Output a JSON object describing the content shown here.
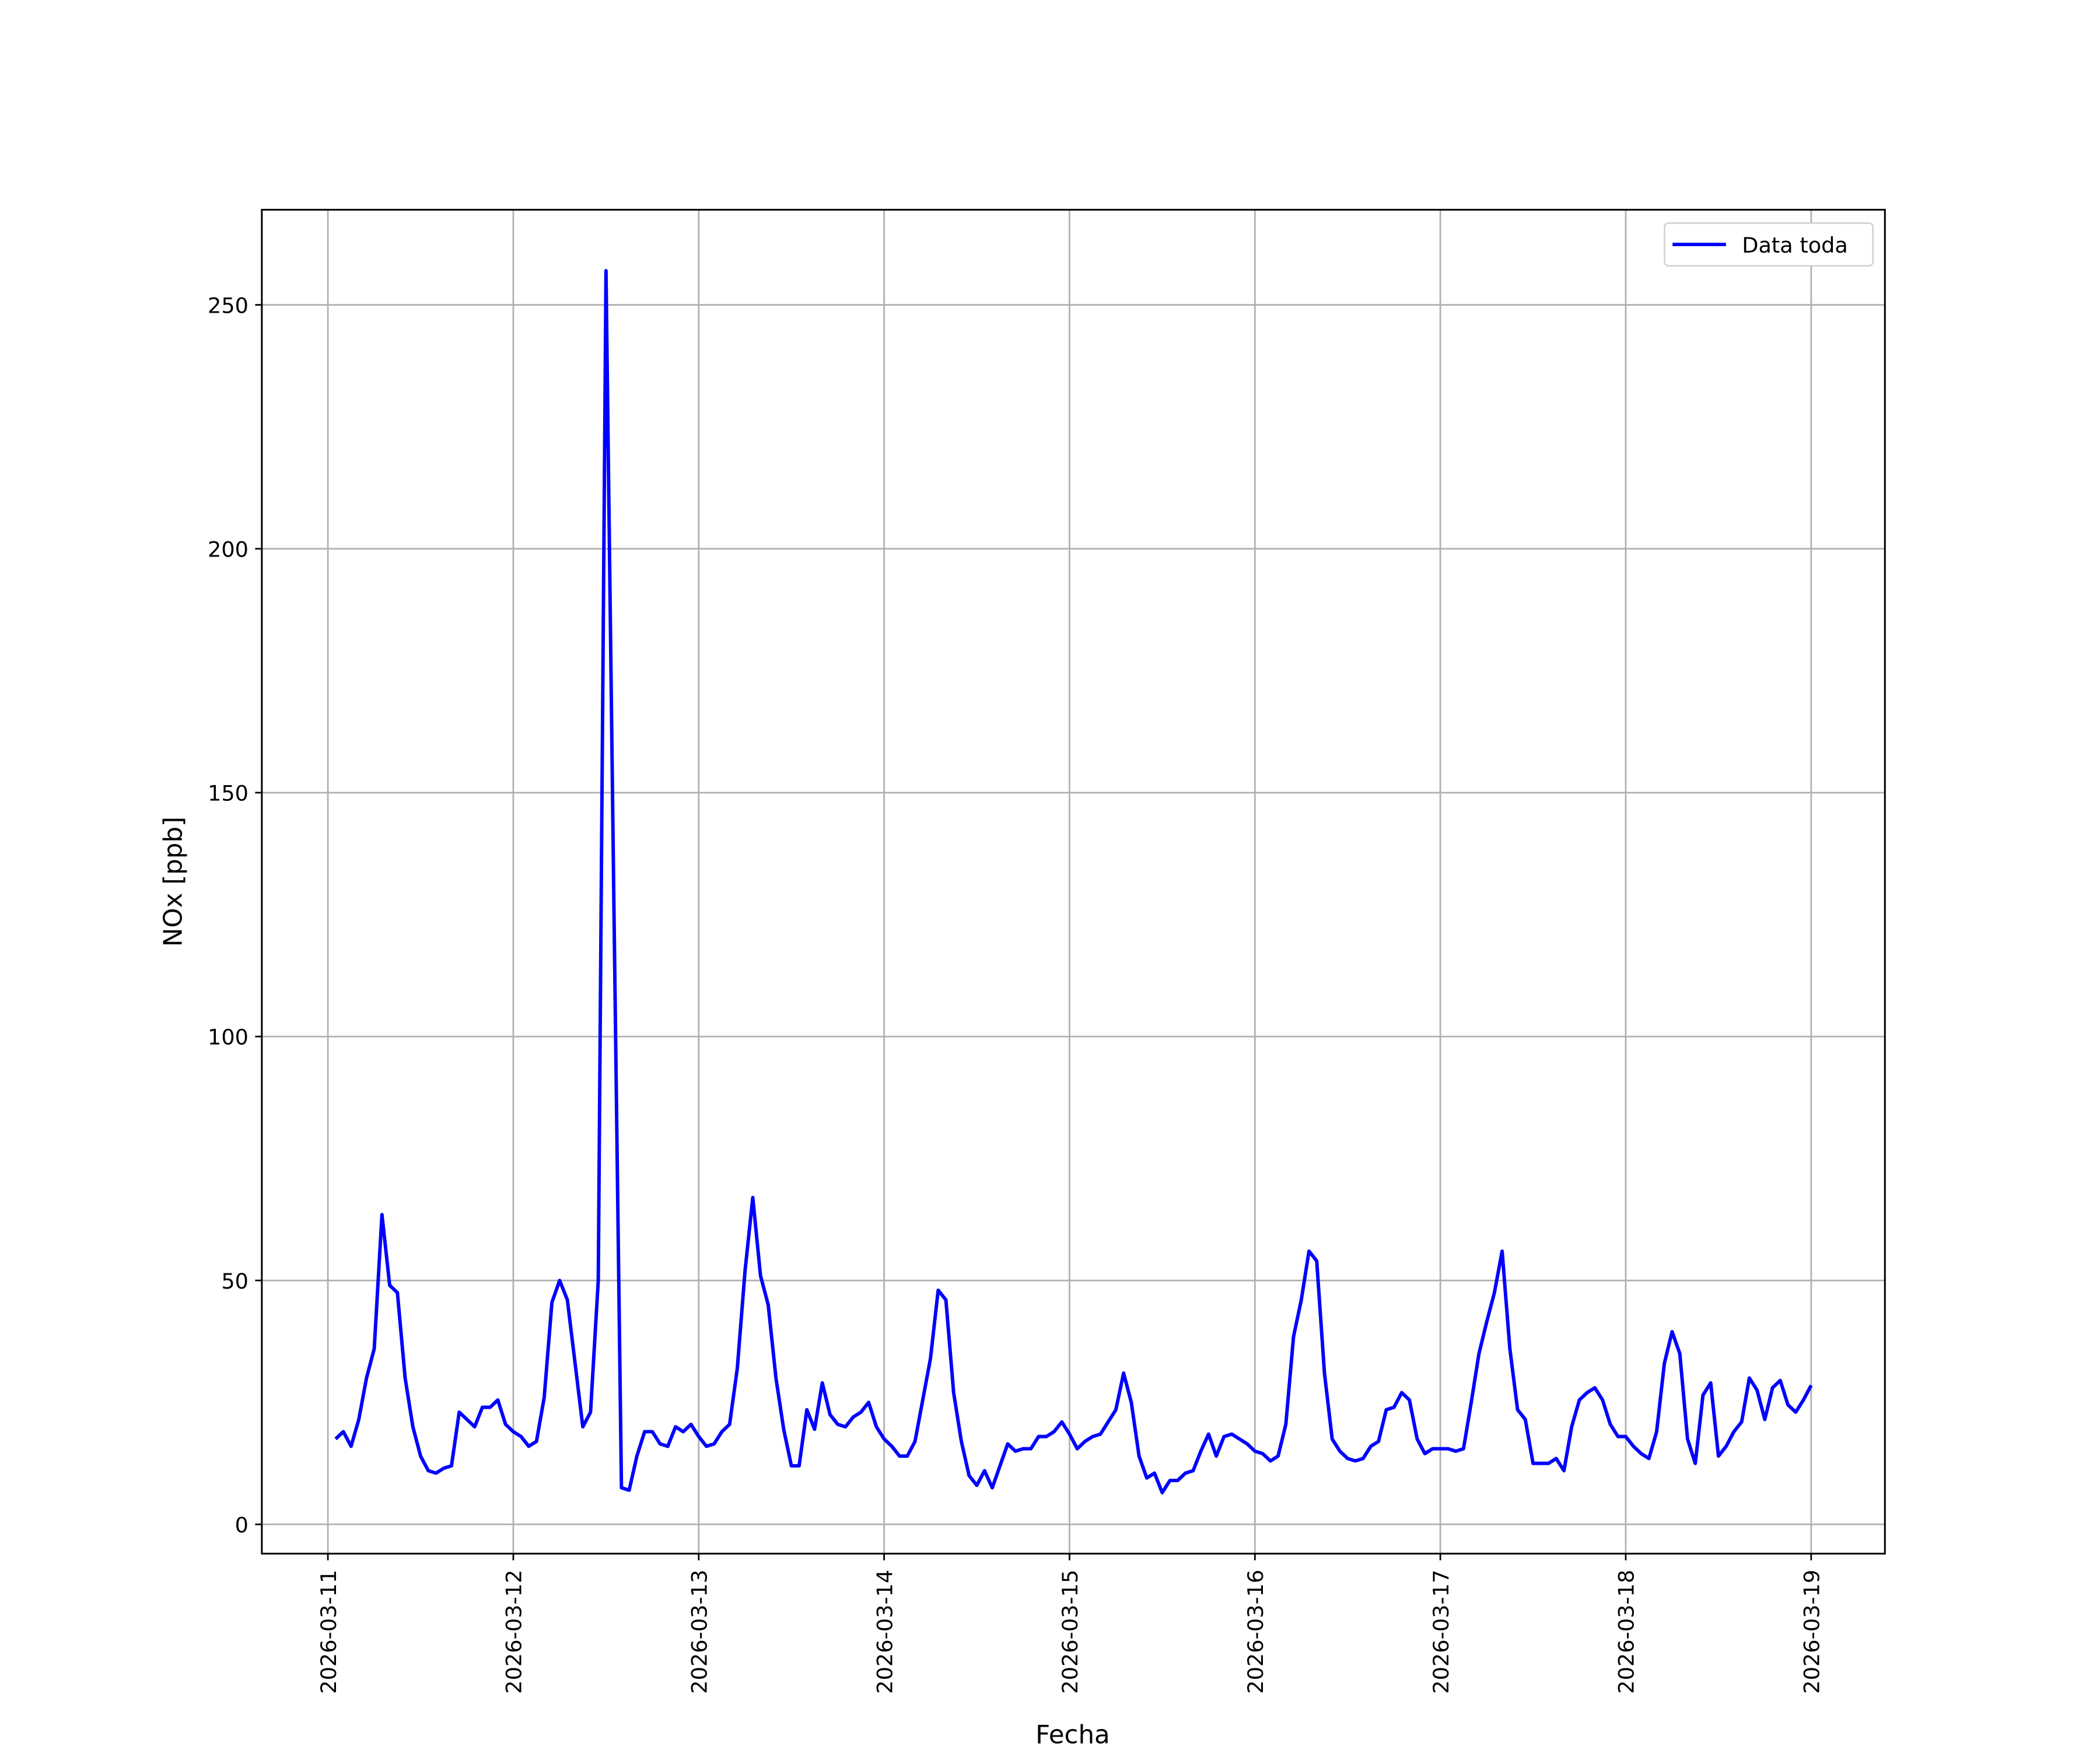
{
  "chart_data": {
    "type": "line",
    "xlabel": "Fecha",
    "ylabel": "NOx [ppb]",
    "x": [
      "2026-03-11 01:00",
      "2026-03-11 02:00",
      "2026-03-11 03:00",
      "2026-03-11 04:00",
      "2026-03-11 05:00",
      "2026-03-11 06:00",
      "2026-03-11 07:00",
      "2026-03-11 08:00",
      "2026-03-11 09:00",
      "2026-03-11 10:00",
      "2026-03-11 11:00",
      "2026-03-11 12:00",
      "2026-03-11 13:00",
      "2026-03-11 14:00",
      "2026-03-11 15:00",
      "2026-03-11 16:00",
      "2026-03-11 17:00",
      "2026-03-11 18:00",
      "2026-03-11 19:00",
      "2026-03-11 20:00",
      "2026-03-11 21:00",
      "2026-03-11 22:00",
      "2026-03-11 23:00",
      "2026-03-12 00:00",
      "2026-03-12 01:00",
      "2026-03-12 02:00",
      "2026-03-12 03:00",
      "2026-03-12 04:00",
      "2026-03-12 05:00",
      "2026-03-12 06:00",
      "2026-03-12 07:00",
      "2026-03-12 08:00",
      "2026-03-12 09:00",
      "2026-03-12 10:00",
      "2026-03-12 11:00",
      "2026-03-12 12:00",
      "2026-03-12 13:00",
      "2026-03-12 14:00",
      "2026-03-12 15:00",
      "2026-03-12 16:00",
      "2026-03-12 17:00",
      "2026-03-12 18:00",
      "2026-03-12 19:00",
      "2026-03-12 20:00",
      "2026-03-12 21:00",
      "2026-03-12 22:00",
      "2026-03-12 23:00",
      "2026-03-13 00:00",
      "2026-03-13 01:00",
      "2026-03-13 02:00",
      "2026-03-13 03:00",
      "2026-03-13 04:00",
      "2026-03-13 05:00",
      "2026-03-13 06:00",
      "2026-03-13 07:00",
      "2026-03-13 08:00",
      "2026-03-13 09:00",
      "2026-03-13 10:00",
      "2026-03-13 11:00",
      "2026-03-13 12:00",
      "2026-03-13 13:00",
      "2026-03-13 14:00",
      "2026-03-13 15:00",
      "2026-03-13 16:00",
      "2026-03-13 17:00",
      "2026-03-13 18:00",
      "2026-03-13 19:00",
      "2026-03-13 20:00",
      "2026-03-13 21:00",
      "2026-03-13 22:00",
      "2026-03-13 23:00",
      "2026-03-14 00:00",
      "2026-03-14 01:00",
      "2026-03-14 02:00",
      "2026-03-14 03:00",
      "2026-03-14 04:00",
      "2026-03-14 05:00",
      "2026-03-14 06:00",
      "2026-03-14 07:00",
      "2026-03-14 08:00",
      "2026-03-14 09:00",
      "2026-03-14 10:00",
      "2026-03-14 11:00",
      "2026-03-14 12:00",
      "2026-03-14 13:00",
      "2026-03-14 14:00",
      "2026-03-14 15:00",
      "2026-03-14 16:00",
      "2026-03-14 17:00",
      "2026-03-14 18:00",
      "2026-03-14 19:00",
      "2026-03-14 20:00",
      "2026-03-14 21:00",
      "2026-03-14 22:00",
      "2026-03-14 23:00",
      "2026-03-15 00:00",
      "2026-03-15 01:00",
      "2026-03-15 02:00",
      "2026-03-15 03:00",
      "2026-03-15 04:00",
      "2026-03-15 05:00",
      "2026-03-15 06:00",
      "2026-03-15 07:00",
      "2026-03-15 08:00",
      "2026-03-15 09:00",
      "2026-03-15 10:00",
      "2026-03-15 11:00",
      "2026-03-15 12:00",
      "2026-03-15 13:00",
      "2026-03-15 14:00",
      "2026-03-15 15:00",
      "2026-03-15 16:00",
      "2026-03-15 17:00",
      "2026-03-15 18:00",
      "2026-03-15 19:00",
      "2026-03-15 20:00",
      "2026-03-15 21:00",
      "2026-03-15 22:00",
      "2026-03-15 23:00",
      "2026-03-16 00:00",
      "2026-03-16 01:00",
      "2026-03-16 02:00",
      "2026-03-16 03:00",
      "2026-03-16 04:00",
      "2026-03-16 05:00",
      "2026-03-16 06:00",
      "2026-03-16 07:00",
      "2026-03-16 08:00",
      "2026-03-16 09:00",
      "2026-03-16 10:00",
      "2026-03-16 11:00",
      "2026-03-16 12:00",
      "2026-03-16 13:00",
      "2026-03-16 14:00",
      "2026-03-16 15:00",
      "2026-03-16 16:00",
      "2026-03-16 17:00",
      "2026-03-16 18:00",
      "2026-03-16 19:00",
      "2026-03-16 20:00",
      "2026-03-16 21:00",
      "2026-03-16 22:00",
      "2026-03-16 23:00",
      "2026-03-17 00:00",
      "2026-03-17 01:00",
      "2026-03-17 02:00",
      "2026-03-17 03:00",
      "2026-03-17 04:00",
      "2026-03-17 05:00",
      "2026-03-17 06:00",
      "2026-03-17 07:00",
      "2026-03-17 08:00",
      "2026-03-17 09:00",
      "2026-03-17 10:00",
      "2026-03-17 11:00",
      "2026-03-17 12:00",
      "2026-03-17 13:00",
      "2026-03-17 14:00",
      "2026-03-17 15:00",
      "2026-03-17 16:00",
      "2026-03-17 17:00",
      "2026-03-17 18:00",
      "2026-03-17 19:00",
      "2026-03-17 20:00",
      "2026-03-17 21:00",
      "2026-03-17 22:00",
      "2026-03-17 23:00",
      "2026-03-18 00:00",
      "2026-03-18 01:00",
      "2026-03-18 02:00",
      "2026-03-18 03:00",
      "2026-03-18 04:00",
      "2026-03-18 05:00",
      "2026-03-18 06:00",
      "2026-03-18 07:00",
      "2026-03-18 08:00",
      "2026-03-18 09:00",
      "2026-03-18 10:00",
      "2026-03-18 11:00",
      "2026-03-18 12:00",
      "2026-03-18 13:00",
      "2026-03-18 14:00",
      "2026-03-18 15:00",
      "2026-03-18 16:00",
      "2026-03-18 17:00",
      "2026-03-18 18:00",
      "2026-03-18 19:00",
      "2026-03-18 20:00",
      "2026-03-18 21:00",
      "2026-03-18 22:00",
      "2026-03-18 23:00",
      "2026-03-19 00:00"
    ],
    "series": [
      {
        "name": "Data toda",
        "color": "#0000ff",
        "values": [
          17.5,
          19,
          16,
          21.5,
          30,
          36,
          63.5,
          49,
          47.5,
          30,
          20,
          14,
          11,
          10.5,
          11.5,
          12,
          23,
          21.5,
          20,
          24,
          24,
          25.5,
          20.5,
          19,
          18,
          16,
          17,
          26,
          45.5,
          50,
          46,
          33,
          20,
          23,
          50,
          257,
          130,
          7.5,
          7,
          14,
          19,
          19,
          16.5,
          16,
          20,
          19,
          20.5,
          18,
          16,
          16.5,
          19,
          20.5,
          32,
          52,
          67,
          51,
          45,
          30,
          19.5,
          12,
          12,
          23.5,
          19.5,
          29,
          22.5,
          20.5,
          20,
          22,
          23,
          25,
          20,
          17.5,
          16,
          14,
          14,
          17,
          25.5,
          34,
          48,
          46,
          27,
          17,
          10,
          8,
          11,
          7.5,
          12,
          16.5,
          15,
          15.5,
          15.5,
          18,
          18,
          19,
          21,
          18.5,
          15.5,
          17,
          18,
          18.5,
          21,
          23.5,
          31,
          25,
          14,
          9.5,
          10.5,
          6.5,
          9,
          9,
          10.5,
          11,
          15,
          18.5,
          14,
          18,
          18.5,
          17.5,
          16.5,
          15,
          14.5,
          13,
          14,
          20.5,
          38.5,
          46,
          56,
          54,
          31,
          17.5,
          15,
          13.5,
          13,
          13.5,
          16,
          17,
          23.5,
          24,
          27,
          25.5,
          17.5,
          14.5,
          15.5,
          15.5,
          15.5,
          15,
          15.5,
          25,
          35,
          41.5,
          47.5,
          56,
          36,
          23.5,
          21.5,
          12.5,
          12.5,
          12.5,
          13.5,
          11,
          20,
          25.5,
          27,
          28,
          25.5,
          20.5,
          18,
          18,
          16,
          14.5,
          13.5,
          19,
          33,
          39.5,
          35,
          17.5,
          12.5,
          26.5,
          29,
          14,
          16,
          19,
          21,
          30,
          27.5,
          21.5,
          28,
          29.5,
          24.5,
          23,
          25.5,
          28.5
        ]
      }
    ],
    "xlim": [
      "2026-03-10 15:27",
      "2026-03-19 09:33"
    ],
    "xticks": [
      "2026-03-11",
      "2026-03-12",
      "2026-03-13",
      "2026-03-14",
      "2026-03-15",
      "2026-03-16",
      "2026-03-17",
      "2026-03-18",
      "2026-03-19"
    ],
    "ylim": [
      -6.0,
      269.5
    ],
    "yticks": [
      0,
      50,
      100,
      150,
      200,
      250
    ],
    "grid": true,
    "legend": "upper right"
  }
}
